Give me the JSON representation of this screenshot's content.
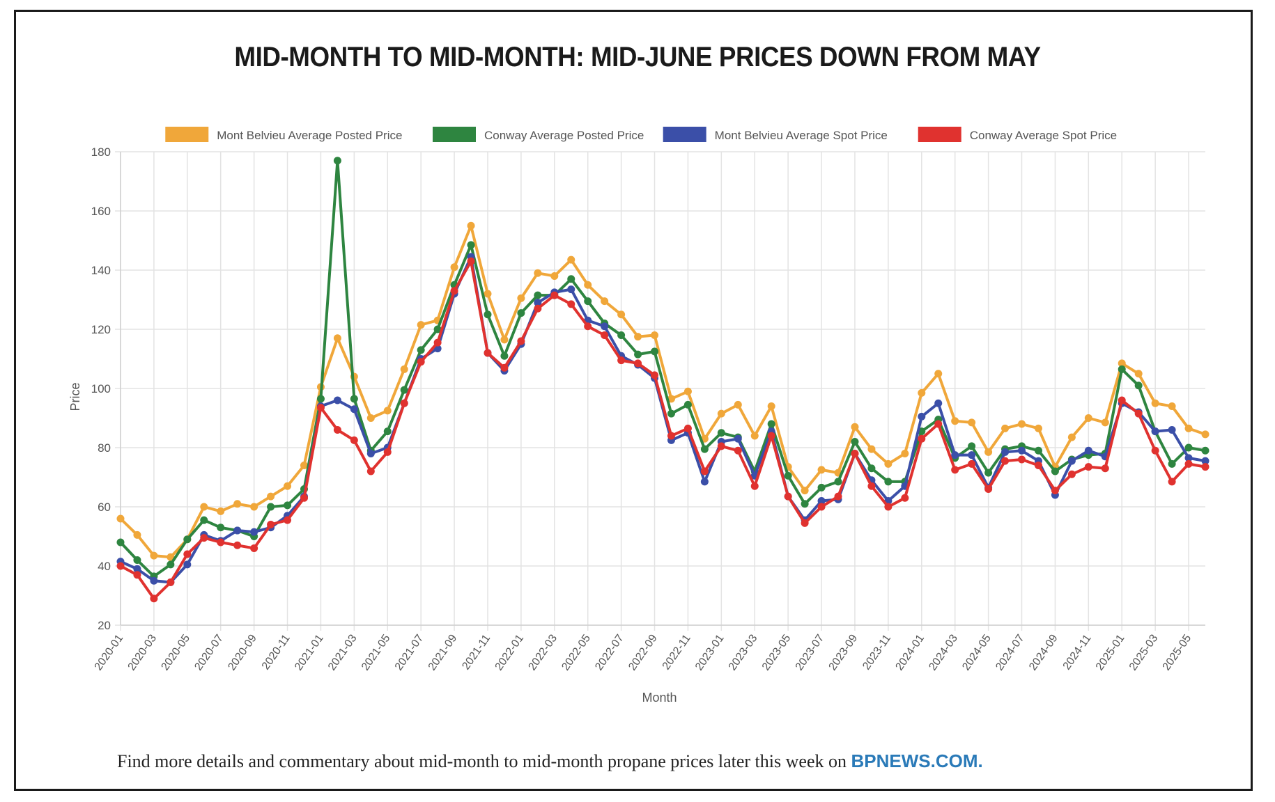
{
  "title": "MID-MONTH TO MID-MONTH: MID-JUNE PRICES DOWN FROM MAY",
  "footer": {
    "text": "Find more details and commentary about mid-month to mid-month propane prices later this week on",
    "link": "BPNEWS.COM."
  },
  "chart_data": {
    "type": "line",
    "xlabel": "Month",
    "ylabel": "Price",
    "ylim": [
      20,
      180
    ],
    "yticks": [
      20,
      40,
      60,
      80,
      100,
      120,
      140,
      160,
      180
    ],
    "grid": true,
    "legend_position": "top",
    "x": [
      "2020-01",
      "2020-02",
      "2020-03",
      "2020-04",
      "2020-05",
      "2020-06",
      "2020-07",
      "2020-08",
      "2020-09",
      "2020-10",
      "2020-11",
      "2020-12",
      "2021-01",
      "2021-02",
      "2021-03",
      "2021-04",
      "2021-05",
      "2021-06",
      "2021-07",
      "2021-08",
      "2021-09",
      "2021-10",
      "2021-11",
      "2021-12",
      "2022-01",
      "2022-02",
      "2022-03",
      "2022-04",
      "2022-05",
      "2022-06",
      "2022-07",
      "2022-08",
      "2022-09",
      "2022-10",
      "2022-11",
      "2022-12",
      "2023-01",
      "2023-02",
      "2023-03",
      "2023-04",
      "2023-05",
      "2023-06",
      "2023-07",
      "2023-08",
      "2023-09",
      "2023-10",
      "2023-11",
      "2023-12",
      "2024-01",
      "2024-02",
      "2024-03",
      "2024-04",
      "2024-05",
      "2024-06",
      "2024-07",
      "2024-08",
      "2024-09",
      "2024-10",
      "2024-11",
      "2024-12",
      "2025-01",
      "2025-02",
      "2025-03",
      "2025-04",
      "2025-05",
      "2025-06"
    ],
    "xtick_labels": [
      "2020-01",
      "2020-03",
      "2020-05",
      "2020-07",
      "2020-09",
      "2020-11",
      "2021-01",
      "2021-03",
      "2021-05",
      "2021-07",
      "2021-09",
      "2021-11",
      "2022-01",
      "2022-03",
      "2022-05",
      "2022-07",
      "2022-09",
      "2022-11",
      "2023-01",
      "2023-03",
      "2023-05",
      "2023-07",
      "2023-09",
      "2023-11",
      "2024-01",
      "2024-03",
      "2024-05",
      "2024-07",
      "2024-09",
      "2024-11",
      "2025-01",
      "2025-03",
      "2025-05"
    ],
    "series": [
      {
        "name": "Mont Belvieu Average Posted Price",
        "color": "#f0a73a",
        "values": [
          56,
          50.5,
          43.5,
          43,
          49,
          60,
          58.5,
          61,
          60,
          63.5,
          67,
          74,
          100.5,
          117,
          104,
          90,
          92.5,
          106.5,
          121.5,
          123,
          141,
          155,
          132,
          116.5,
          130.5,
          139,
          138,
          143.5,
          135,
          129.5,
          125,
          117.5,
          118,
          96.5,
          99,
          83,
          91.5,
          94.5,
          84,
          94,
          73.5,
          65.5,
          72.5,
          71.5,
          87,
          79.5,
          74.5,
          78,
          98.5,
          105,
          89,
          88.5,
          78.5,
          86.5,
          88,
          86.5,
          73.5,
          83.5,
          90,
          88.5,
          108.5,
          105,
          95,
          94,
          86.5,
          84.5
        ]
      },
      {
        "name": "Conway Average Posted Price",
        "color": "#2e8540",
        "values": [
          48,
          42,
          36.5,
          40.5,
          49,
          55.5,
          53,
          52,
          50,
          60,
          60.5,
          66,
          96.5,
          177,
          96.5,
          79,
          85.5,
          99.5,
          113,
          120,
          135,
          148.5,
          125,
          111,
          125.5,
          131.5,
          131.5,
          137,
          129.5,
          122,
          118,
          111.5,
          112.5,
          91.5,
          94.5,
          79.5,
          85,
          83.5,
          72,
          88,
          70.5,
          61,
          66.5,
          68.5,
          82,
          73,
          68.5,
          68.5,
          85.5,
          89.5,
          76.5,
          80.5,
          71.5,
          79.5,
          80.5,
          79,
          72,
          76,
          77.5,
          78,
          106.5,
          101,
          85.5,
          74.5,
          80,
          79
        ]
      },
      {
        "name": "Mont Belvieu Average Spot Price",
        "color": "#3b4fa8",
        "values": [
          41.5,
          39,
          35,
          34.5,
          40.5,
          50.5,
          48.5,
          52,
          51.5,
          53,
          57,
          63.5,
          94,
          96,
          93,
          78,
          80,
          95,
          110,
          113.5,
          132,
          144.5,
          112,
          106,
          115,
          129,
          132.5,
          133.5,
          123,
          121,
          111,
          108,
          103.5,
          82.5,
          85,
          68.5,
          82,
          83,
          70.5,
          85.5,
          63.5,
          55.5,
          62,
          62.5,
          78,
          69,
          62,
          67,
          90.5,
          95,
          77.5,
          77.5,
          66.5,
          78.5,
          79,
          75.5,
          64,
          75.5,
          79,
          77,
          95,
          92,
          85.5,
          86,
          76.5,
          75.5
        ]
      },
      {
        "name": "Conway Average Spot Price",
        "color": "#e0322f",
        "values": [
          40,
          37,
          29,
          34.5,
          44,
          49.5,
          48,
          47,
          46,
          54,
          55.5,
          63,
          93.5,
          86,
          82.5,
          72,
          78.5,
          95,
          109,
          115.5,
          133,
          143,
          112,
          107,
          116,
          127,
          131.5,
          128.5,
          121,
          118,
          109.5,
          108.5,
          104.5,
          84,
          86.5,
          72,
          80.5,
          79,
          67,
          84,
          63.5,
          54.5,
          60,
          63.5,
          78,
          67,
          60,
          63,
          83,
          88,
          72.5,
          74.5,
          66,
          75.5,
          76,
          74,
          65.5,
          71,
          73.5,
          73,
          96,
          91.5,
          79,
          68.5,
          74.5,
          73.5
        ]
      }
    ]
  }
}
